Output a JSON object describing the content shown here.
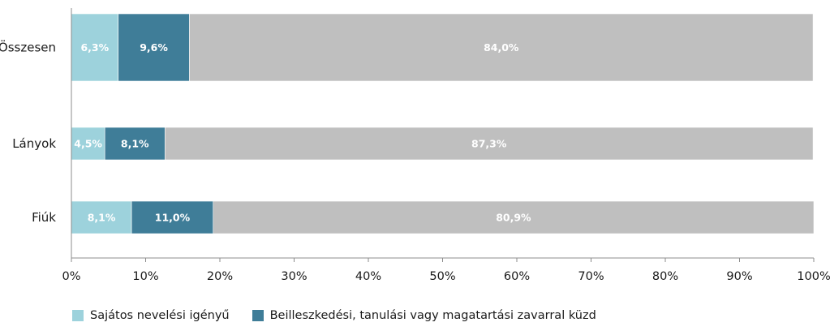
{
  "chart_data": {
    "type": "bar",
    "orientation": "horizontal",
    "stacked": true,
    "categories": [
      "Összesen",
      "Lányok",
      "Fiúk"
    ],
    "series": [
      {
        "name": "Sajátos nevelési igényű",
        "color": "#9dd2dc",
        "values": [
          6.3,
          4.5,
          8.1
        ],
        "labels": [
          "6,3%",
          "4,5%",
          "8,1%"
        ]
      },
      {
        "name": "Beilleszkedési, tanulási vagy magatartási zavarral küzd",
        "color": "#3f7d98",
        "values": [
          9.6,
          8.1,
          11.0
        ],
        "labels": [
          "9,6%",
          "8,1%",
          "11,0%"
        ]
      },
      {
        "name": "",
        "color": "#bfbfbf",
        "values": [
          84.0,
          87.3,
          80.9
        ],
        "labels": [
          "84,0%",
          "87,3%",
          "80,9%"
        ]
      }
    ],
    "xlim": [
      0,
      100
    ],
    "xticks": [
      "0%",
      "10%",
      "20%",
      "30%",
      "40%",
      "50%",
      "60%",
      "70%",
      "80%",
      "90%",
      "100%"
    ],
    "grid": false,
    "legend_position": "bottom"
  }
}
